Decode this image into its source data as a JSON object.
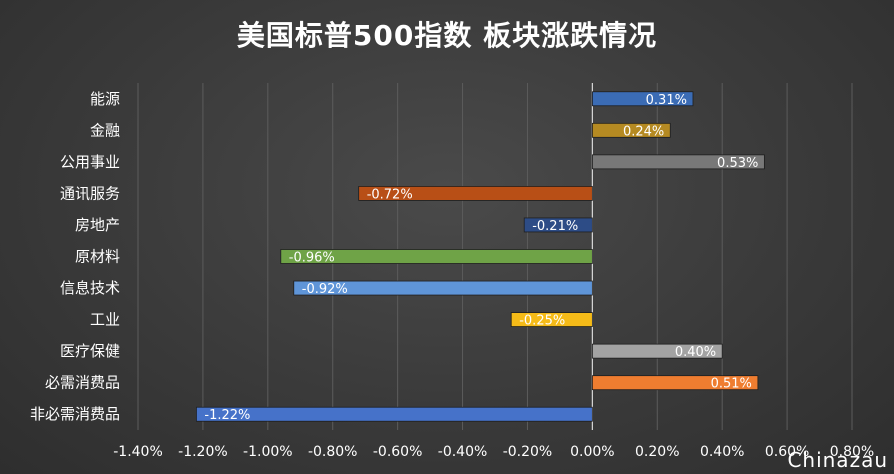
{
  "chart_data": {
    "type": "bar",
    "orientation": "horizontal",
    "title": "美国标普500指数 板块涨跌情况",
    "categories": [
      "能源",
      "金融",
      "公用事业",
      "通讯服务",
      "房地产",
      "原材料",
      "信息技术",
      "工业",
      "医疗保健",
      "必需消费品",
      "非必需消费品"
    ],
    "values": [
      0.31,
      0.24,
      0.53,
      -0.72,
      -0.21,
      -0.96,
      -0.92,
      -0.25,
      0.4,
      0.51,
      -1.22
    ],
    "data_labels": [
      "0.31%",
      "0.24%",
      "0.53%",
      "-0.72%",
      "-0.21%",
      "-0.96%",
      "-0.92%",
      "-0.25%",
      "0.40%",
      "0.51%",
      "-1.22%"
    ],
    "colors": [
      "#3b6cb5",
      "#b58a22",
      "#787878",
      "#b84f16",
      "#2d4c86",
      "#6fa347",
      "#5f95d8",
      "#f5bb18",
      "#a3a3a3",
      "#ef7d30",
      "#4672c9"
    ],
    "xticks": [
      "-1.40%",
      "-1.20%",
      "-1.00%",
      "-0.80%",
      "-0.60%",
      "-0.40%",
      "-0.20%",
      "0.00%",
      "0.20%",
      "0.40%",
      "0.60%",
      "0.80%"
    ],
    "xlim": [
      -1.4,
      0.8
    ],
    "grid": true,
    "legend": "none"
  },
  "watermark": "Chinazau"
}
